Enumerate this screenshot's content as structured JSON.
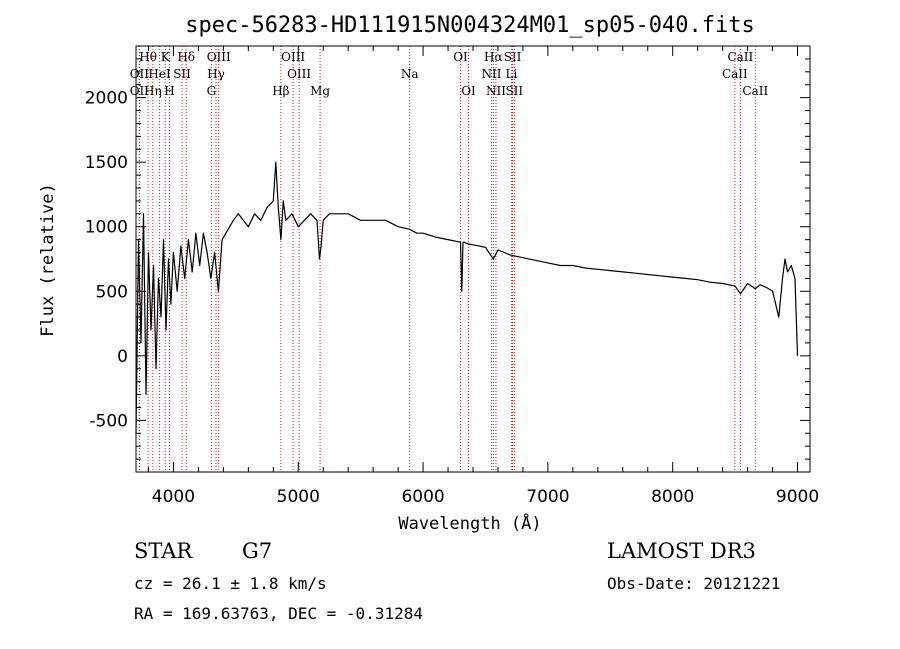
{
  "chart_data": {
    "type": "line",
    "title": "spec-56283-HD111915N004324M01_sp05-040.fits",
    "xlabel": "Wavelength (Å)",
    "ylabel": "Flux (relative)",
    "xlim": [
      3700,
      9100
    ],
    "ylim": [
      -900,
      2400
    ],
    "x_ticks": [
      4000,
      5000,
      6000,
      7000,
      8000,
      9000
    ],
    "y_ticks": [
      -500,
      0,
      500,
      1000,
      1500,
      2000
    ],
    "series": [
      {
        "name": "spectrum",
        "x": [
          3700,
          3720,
          3740,
          3760,
          3780,
          3800,
          3820,
          3840,
          3860,
          3880,
          3900,
          3920,
          3940,
          3960,
          3980,
          4000,
          4030,
          4060,
          4090,
          4120,
          4150,
          4180,
          4210,
          4240,
          4270,
          4300,
          4330,
          4360,
          4390,
          4420,
          4450,
          4480,
          4520,
          4560,
          4600,
          4650,
          4700,
          4750,
          4800,
          4820,
          4840,
          4861,
          4880,
          4900,
          4950,
          5000,
          5050,
          5100,
          5150,
          5170,
          5183,
          5200,
          5250,
          5300,
          5400,
          5500,
          5600,
          5700,
          5800,
          5893,
          5950,
          6000,
          6100,
          6200,
          6300,
          6310,
          6320,
          6330,
          6350,
          6400,
          6450,
          6500,
          6563,
          6600,
          6650,
          6700,
          6800,
          6900,
          7000,
          7100,
          7200,
          7300,
          7400,
          7500,
          7600,
          7700,
          7800,
          7900,
          8000,
          8100,
          8200,
          8300,
          8400,
          8500,
          8542,
          8600,
          8662,
          8700,
          8750,
          8800,
          8850,
          8880,
          8900,
          8920,
          8950,
          8980,
          9000
        ],
        "y": [
          -600,
          900,
          100,
          1100,
          -300,
          800,
          200,
          700,
          -100,
          600,
          300,
          900,
          200,
          750,
          400,
          800,
          500,
          850,
          600,
          900,
          650,
          950,
          700,
          950,
          800,
          600,
          800,
          500,
          900,
          950,
          1000,
          1050,
          1100,
          1050,
          1000,
          1100,
          1050,
          1150,
          1200,
          1500,
          1150,
          900,
          1200,
          1050,
          1100,
          1000,
          1050,
          1100,
          1050,
          750,
          850,
          1050,
          1100,
          1100,
          1100,
          1050,
          1050,
          1050,
          1000,
          980,
          950,
          950,
          920,
          900,
          880,
          500,
          880,
          880,
          870,
          860,
          850,
          840,
          750,
          820,
          800,
          780,
          760,
          740,
          720,
          700,
          700,
          680,
          670,
          660,
          650,
          640,
          630,
          620,
          610,
          600,
          590,
          570,
          560,
          540,
          480,
          560,
          520,
          550,
          530,
          500,
          300,
          600,
          750,
          650,
          700,
          600,
          0
        ]
      }
    ],
    "spectral_lines": [
      {
        "label": "Hθ",
        "x": 3797,
        "row": 1
      },
      {
        "label": "K",
        "x": 3934,
        "row": 1
      },
      {
        "label": "Hδ",
        "x": 4102,
        "row": 1
      },
      {
        "label": "OIII",
        "x": 4363,
        "row": 1
      },
      {
        "label": "OIII",
        "x": 4959,
        "row": 1
      },
      {
        "label": "OI",
        "x": 6300,
        "row": 1
      },
      {
        "label": "Hα",
        "x": 6563,
        "row": 1
      },
      {
        "label": "SII",
        "x": 6717,
        "row": 1
      },
      {
        "label": "CaII",
        "x": 8542,
        "row": 1
      },
      {
        "label": "OII",
        "x": 3727,
        "row": 2
      },
      {
        "label": "HeI",
        "x": 3889,
        "row": 2
      },
      {
        "label": "SII",
        "x": 4069,
        "row": 2
      },
      {
        "label": "Hγ",
        "x": 4341,
        "row": 2
      },
      {
        "label": "OIII",
        "x": 5007,
        "row": 2
      },
      {
        "label": "Na",
        "x": 5893,
        "row": 2
      },
      {
        "label": "NII",
        "x": 6548,
        "row": 2
      },
      {
        "label": "Li",
        "x": 6708,
        "row": 2
      },
      {
        "label": "CaII",
        "x": 8498,
        "row": 2
      },
      {
        "label": "OII",
        "x": 3727,
        "row": 3
      },
      {
        "label": "Hη",
        "x": 3835,
        "row": 3
      },
      {
        "label": "H",
        "x": 3968,
        "row": 3
      },
      {
        "label": "G",
        "x": 4304,
        "row": 3
      },
      {
        "label": "Hβ",
        "x": 4861,
        "row": 3
      },
      {
        "label": "Mg",
        "x": 5175,
        "row": 3
      },
      {
        "label": "OI",
        "x": 6364,
        "row": 3
      },
      {
        "label": "NII",
        "x": 6584,
        "row": 3
      },
      {
        "label": "SII",
        "x": 6731,
        "row": 3
      },
      {
        "label": "CaII",
        "x": 8662,
        "row": 3
      }
    ]
  },
  "info": {
    "object_class": "STAR",
    "subclass": "G7",
    "survey": "LAMOST DR3",
    "redshift": "cz = 26.1 ± 1.8 km/s",
    "obs_date": "Obs-Date: 20121221",
    "coords": "RA = 169.63763, DEC =  -0.31284"
  }
}
